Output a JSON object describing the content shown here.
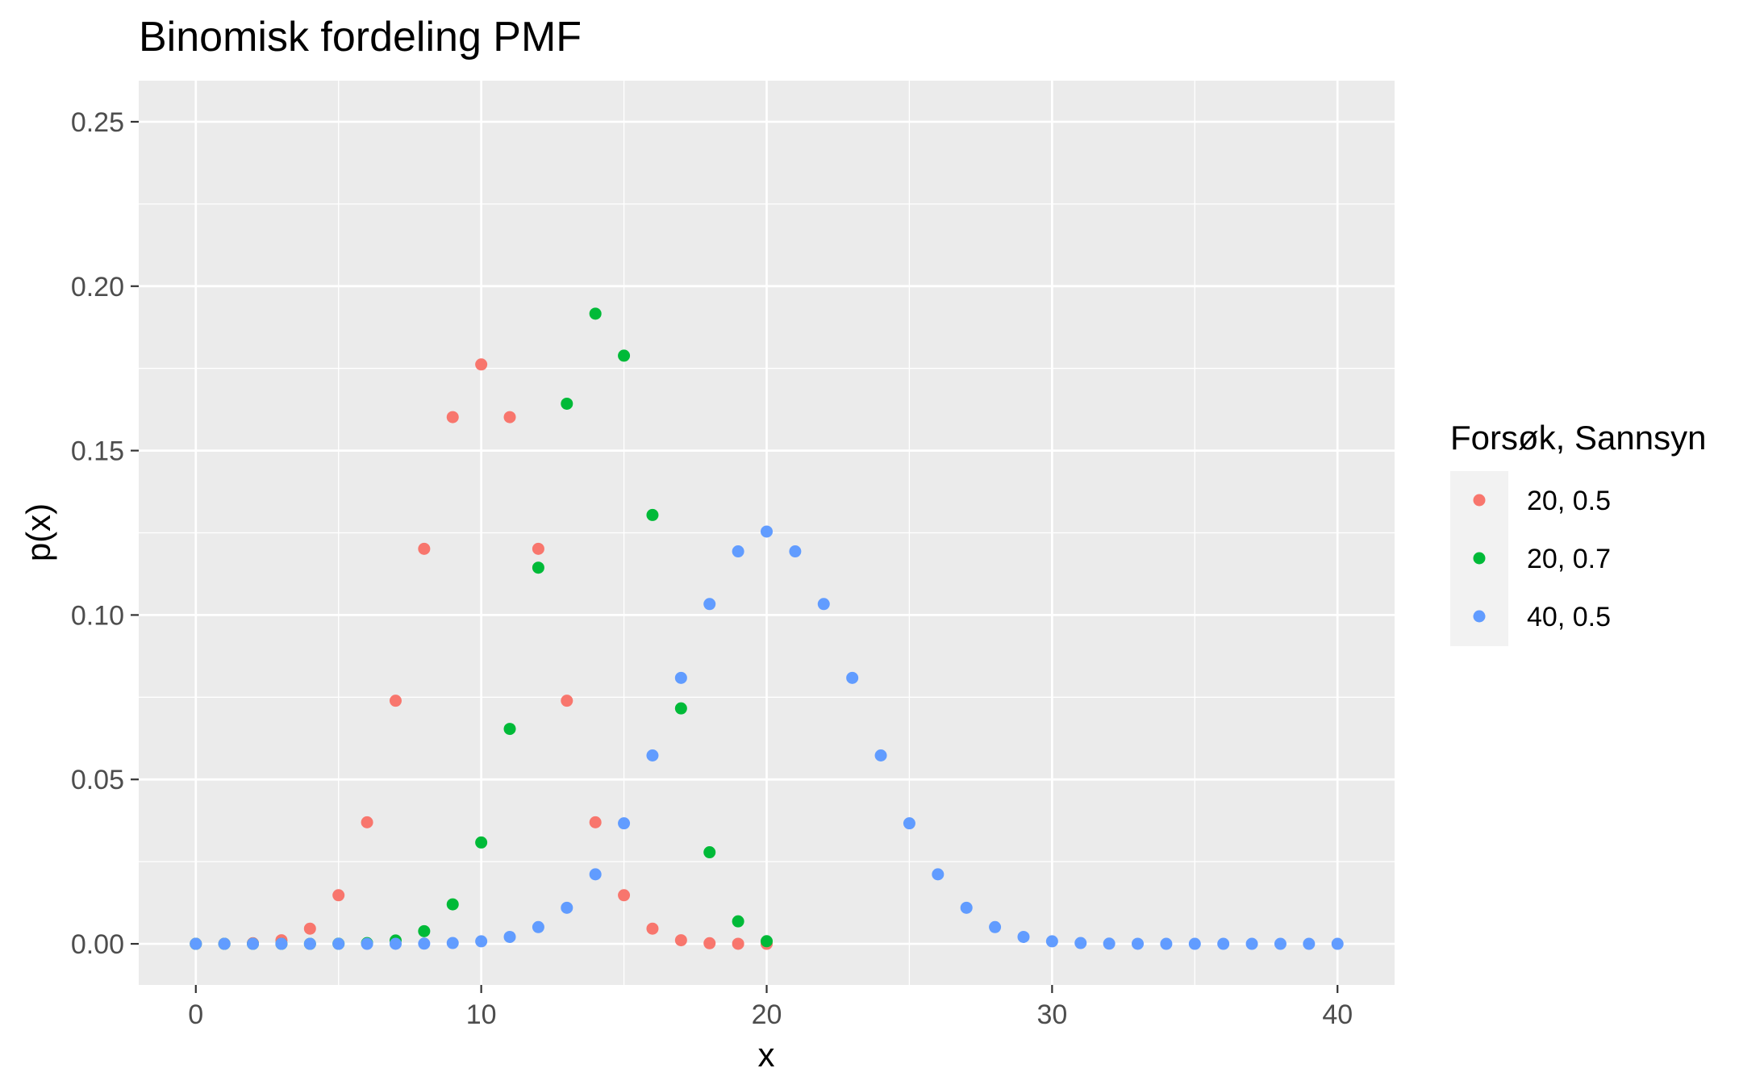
{
  "chart_data": {
    "type": "scatter",
    "title": "Binomisk fordeling PMF",
    "xlabel": "x",
    "ylabel": "p(x)",
    "xlim": [
      -2,
      42
    ],
    "ylim": [
      -0.0125,
      0.2625
    ],
    "xticks": [
      0,
      10,
      20,
      30,
      40
    ],
    "xtick_labels": [
      "0",
      "10",
      "20",
      "30",
      "40"
    ],
    "yticks": [
      0,
      0.05,
      0.1,
      0.15,
      0.2,
      0.25
    ],
    "ytick_labels": [
      "0.00",
      "0.05",
      "0.10",
      "0.15",
      "0.20",
      "0.25"
    ],
    "grid": true,
    "legend_position": "right",
    "legend_title": "Forsøk, Sannsyn",
    "series": [
      {
        "name": "20, 0.5",
        "color": "#F8766D",
        "x": [
          0,
          1,
          2,
          3,
          4,
          5,
          6,
          7,
          8,
          9,
          10,
          11,
          12,
          13,
          14,
          15,
          16,
          17,
          18,
          19,
          20
        ],
        "values": [
          1e-06,
          1.9e-05,
          0.000181,
          0.001087,
          0.004621,
          0.014786,
          0.036964,
          0.073929,
          0.120134,
          0.160179,
          0.176197,
          0.160179,
          0.120134,
          0.073929,
          0.036964,
          0.014786,
          0.004621,
          0.001087,
          0.000181,
          1.9e-05,
          1e-06
        ]
      },
      {
        "name": "20, 0.7",
        "color": "#00BA38",
        "x": [
          0,
          1,
          2,
          3,
          4,
          5,
          6,
          7,
          8,
          9,
          10,
          11,
          12,
          13,
          14,
          15,
          16,
          17,
          18,
          19,
          20
        ],
        "values": [
          0.0,
          0.0,
          0.0,
          0.0,
          5e-06,
          3.7e-05,
          0.000218,
          0.001018,
          0.003859,
          0.012007,
          0.030817,
          0.065369,
          0.114397,
          0.164262,
          0.191639,
          0.178863,
          0.130421,
          0.071604,
          0.027846,
          0.006839,
          0.000798
        ]
      },
      {
        "name": "40, 0.5",
        "color": "#619CFF",
        "x": [
          0,
          1,
          2,
          3,
          4,
          5,
          6,
          7,
          8,
          9,
          10,
          11,
          12,
          13,
          14,
          15,
          16,
          17,
          18,
          19,
          20,
          21,
          22,
          23,
          24,
          25,
          26,
          27,
          28,
          29,
          30,
          31,
          32,
          33,
          34,
          35,
          36,
          37,
          38,
          39,
          40
        ],
        "values": [
          0.0,
          0.0,
          0.0,
          0.0,
          0.0,
          0.0,
          3e-06,
          1.7e-05,
          7e-05,
          0.000249,
          0.000772,
          0.002106,
          0.00509,
          0.010962,
          0.021141,
          0.036651,
          0.057292,
          0.080878,
          0.103347,
          0.119349,
          0.125371,
          0.119349,
          0.103347,
          0.080878,
          0.057292,
          0.036651,
          0.021141,
          0.010962,
          0.00509,
          0.002106,
          0.000772,
          0.000249,
          7e-05,
          1.7e-05,
          3e-06,
          0.0,
          0.0,
          0.0,
          0.0,
          0.0,
          0.0
        ]
      }
    ]
  }
}
